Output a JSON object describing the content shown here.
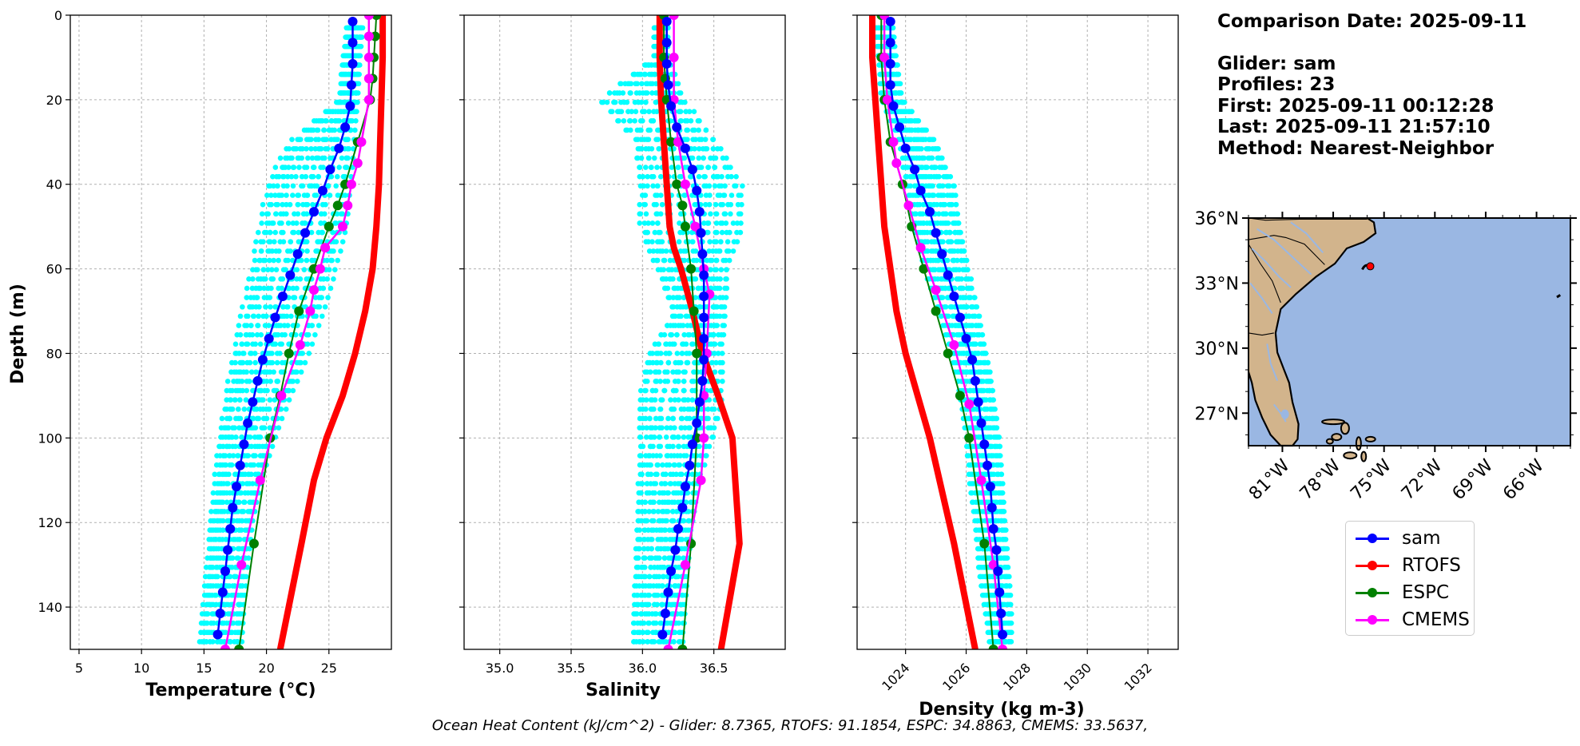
{
  "header": {
    "comparison": "Comparison Date: 2025-09-11",
    "glider": "Glider: sam",
    "profiles": "Profiles: 23",
    "first": "First: 2025-09-11 00:12:28",
    "last": "Last: 2025-09-11 21:57:10",
    "method": "Method: Nearest-Neighbor"
  },
  "footer": {
    "ohc": "Ocean Heat Content (kJ/cm^2) - Glider: 8.7365,  RTOFS: 91.1854,  ESPC: 34.8863,  CMEMS: 33.5637,"
  },
  "colors": {
    "sam": "#0000ff",
    "rtofs": "#ff0000",
    "espc": "#008000",
    "cmems": "#ff00ff",
    "profiles": "#00ffff",
    "land": "#d2b48c",
    "ocean": "#9ab7e3"
  },
  "legend": [
    {
      "label": "sam",
      "color": "#0000ff"
    },
    {
      "label": "RTOFS",
      "color": "#ff0000"
    },
    {
      "label": "ESPC",
      "color": "#008000"
    },
    {
      "label": "CMEMS",
      "color": "#ff00ff"
    }
  ],
  "chart_data": [
    {
      "type": "line",
      "xlabel": "Temperature (°C)",
      "ylabel": "Depth (m)",
      "xlim": [
        4.3,
        30.0
      ],
      "ylim": [
        150,
        0
      ],
      "xticks": [
        5,
        10,
        15,
        20,
        25
      ],
      "yticks": [
        0,
        20,
        40,
        60,
        80,
        100,
        120,
        140
      ],
      "grid": true,
      "profile_envelope": {
        "depth": [
          3,
          10,
          20,
          30,
          40,
          50,
          60,
          70,
          80,
          90,
          100,
          110,
          120,
          130,
          140,
          150
        ],
        "min": [
          26.4,
          26.1,
          25.8,
          21.8,
          20.0,
          19.4,
          18.7,
          18.0,
          17.3,
          16.7,
          16.2,
          15.8,
          15.5,
          15.2,
          14.9,
          14.6
        ],
        "max": [
          27.7,
          27.5,
          27.3,
          27.0,
          26.8,
          26.4,
          25.6,
          24.6,
          23.4,
          22.0,
          20.7,
          19.6,
          18.9,
          18.5,
          18.2,
          18.0
        ]
      },
      "series": [
        {
          "name": "sam",
          "depth": [
            1.5,
            6.5,
            11.5,
            16.5,
            21.5,
            26.5,
            31.5,
            36.5,
            41.5,
            46.5,
            51.5,
            56.5,
            61.5,
            66.5,
            71.5,
            76.5,
            81.5,
            86.5,
            91.5,
            96.5,
            101.5,
            106.5,
            111.5,
            116.5,
            121.5,
            126.5,
            131.5,
            136.5,
            141.5,
            146.5
          ],
          "values": [
            26.9,
            26.9,
            26.9,
            26.8,
            26.7,
            26.3,
            25.8,
            25.1,
            24.5,
            23.8,
            23.1,
            22.5,
            21.9,
            21.3,
            20.7,
            20.2,
            19.7,
            19.3,
            18.9,
            18.5,
            18.2,
            17.9,
            17.6,
            17.3,
            17.1,
            16.9,
            16.7,
            16.5,
            16.3,
            16.1
          ]
        },
        {
          "name": "RTOFS",
          "depth": [
            0,
            10,
            20,
            30,
            40,
            50,
            60,
            70,
            80,
            90,
            100,
            110,
            125,
            150
          ],
          "values": [
            29.3,
            29.3,
            29.2,
            29.1,
            29.0,
            28.8,
            28.5,
            27.9,
            27.1,
            26.1,
            24.8,
            23.8,
            22.8,
            21.1
          ]
        },
        {
          "name": "ESPC",
          "depth": [
            0,
            5,
            10,
            15,
            20,
            30,
            40,
            45,
            50,
            60,
            70,
            80,
            90,
            100,
            125,
            150
          ],
          "values": [
            28.8,
            28.7,
            28.6,
            28.5,
            28.3,
            27.3,
            26.3,
            25.7,
            25.0,
            23.8,
            22.6,
            21.8,
            21.1,
            20.3,
            19.0,
            17.8
          ]
        },
        {
          "name": "CMEMS",
          "depth": [
            0,
            5,
            10,
            15,
            20,
            30,
            35,
            40,
            45,
            50,
            55,
            60,
            65,
            70,
            78,
            90,
            110,
            130,
            150
          ],
          "values": [
            28.2,
            28.2,
            28.2,
            28.2,
            28.2,
            27.6,
            27.3,
            26.8,
            26.5,
            26.1,
            24.7,
            24.3,
            23.8,
            23.5,
            22.7,
            21.2,
            19.5,
            18.0,
            16.7
          ]
        }
      ]
    },
    {
      "type": "line",
      "xlabel": "Salinity",
      "xlim": [
        34.75,
        37.0
      ],
      "ylim": [
        150,
        0
      ],
      "xticks": [
        35.0,
        35.5,
        36.0,
        36.5
      ],
      "grid": true,
      "profile_envelope": {
        "depth": [
          3,
          10,
          20,
          30,
          40,
          50,
          60,
          70,
          80,
          90,
          100,
          110,
          120,
          130,
          140,
          150
        ],
        "min": [
          36.08,
          36.08,
          35.7,
          35.95,
          35.98,
          35.98,
          36.1,
          36.22,
          36.05,
          35.98,
          35.98,
          35.97,
          35.96,
          35.95,
          35.94,
          35.93
        ],
        "max": [
          36.18,
          36.18,
          36.3,
          36.52,
          36.7,
          36.7,
          36.6,
          36.58,
          36.56,
          36.56,
          36.5,
          36.4,
          36.35,
          36.32,
          36.3,
          36.28
        ]
      },
      "series": [
        {
          "name": "sam",
          "depth": [
            1.5,
            6.5,
            11.5,
            16.5,
            21.5,
            26.5,
            31.5,
            36.5,
            41.5,
            46.5,
            51.5,
            56.5,
            61.5,
            66.5,
            71.5,
            76.5,
            81.5,
            86.5,
            91.5,
            96.5,
            101.5,
            106.5,
            111.5,
            116.5,
            121.5,
            126.5,
            131.5,
            136.5,
            141.5,
            146.5
          ],
          "values": [
            36.17,
            36.17,
            36.17,
            36.18,
            36.2,
            36.24,
            36.3,
            36.35,
            36.38,
            36.4,
            36.41,
            36.42,
            36.43,
            36.43,
            36.43,
            36.43,
            36.43,
            36.42,
            36.4,
            36.38,
            36.35,
            36.33,
            36.3,
            36.28,
            36.25,
            36.23,
            36.2,
            36.18,
            36.16,
            36.14
          ]
        },
        {
          "name": "RTOFS",
          "depth": [
            0,
            10,
            20,
            30,
            40,
            50,
            55,
            60,
            70,
            80,
            90,
            100,
            125,
            150
          ],
          "values": [
            36.12,
            36.12,
            36.13,
            36.15,
            36.17,
            36.19,
            36.22,
            36.27,
            36.35,
            36.42,
            36.53,
            36.63,
            36.68,
            36.55
          ]
        },
        {
          "name": "ESPC",
          "depth": [
            0,
            10,
            15,
            20,
            30,
            40,
            45,
            50,
            60,
            70,
            80,
            100,
            125,
            150
          ],
          "values": [
            36.15,
            36.15,
            36.16,
            36.17,
            36.2,
            36.24,
            36.28,
            36.3,
            36.34,
            36.36,
            36.38,
            36.38,
            36.34,
            36.28
          ]
        },
        {
          "name": "CMEMS",
          "depth": [
            0,
            10,
            20,
            30,
            40,
            50,
            60,
            66,
            80,
            90,
            100,
            110,
            130,
            150
          ],
          "values": [
            36.22,
            36.22,
            36.22,
            36.25,
            36.3,
            36.37,
            36.43,
            36.47,
            36.45,
            36.43,
            36.43,
            36.41,
            36.3,
            36.18
          ]
        }
      ]
    },
    {
      "type": "line",
      "xlabel": "Density (kg m-3)",
      "xlim": [
        1022.4,
        1033.0
      ],
      "ylim": [
        150,
        0
      ],
      "xticks": [
        1024,
        1026,
        1028,
        1030,
        1032
      ],
      "grid": true,
      "profile_envelope": {
        "depth": [
          3,
          10,
          20,
          30,
          40,
          50,
          60,
          70,
          80,
          90,
          100,
          110,
          120,
          130,
          140,
          150
        ],
        "min": [
          1023.0,
          1023.1,
          1023.2,
          1023.8,
          1024.0,
          1024.3,
          1024.6,
          1025.1,
          1025.5,
          1025.8,
          1026.0,
          1026.1,
          1026.3,
          1026.4,
          1026.6,
          1026.8
        ],
        "max": [
          1023.6,
          1023.7,
          1023.9,
          1025.0,
          1025.6,
          1025.8,
          1026.1,
          1026.4,
          1026.7,
          1026.9,
          1027.1,
          1027.2,
          1027.3,
          1027.4,
          1027.5,
          1027.5
        ]
      },
      "series": [
        {
          "name": "sam",
          "depth": [
            1.5,
            6.5,
            11.5,
            16.5,
            21.5,
            26.5,
            31.5,
            36.5,
            41.5,
            46.5,
            51.5,
            56.5,
            61.5,
            66.5,
            71.5,
            76.5,
            81.5,
            86.5,
            91.5,
            96.5,
            101.5,
            106.5,
            111.5,
            116.5,
            121.5,
            126.5,
            131.5,
            136.5,
            141.5,
            146.5
          ],
          "values": [
            1023.5,
            1023.5,
            1023.5,
            1023.5,
            1023.6,
            1023.8,
            1024.0,
            1024.3,
            1024.5,
            1024.8,
            1025.0,
            1025.2,
            1025.4,
            1025.6,
            1025.8,
            1026.0,
            1026.2,
            1026.3,
            1026.4,
            1026.5,
            1026.6,
            1026.7,
            1026.8,
            1026.85,
            1026.9,
            1027.0,
            1027.05,
            1027.1,
            1027.15,
            1027.2
          ]
        },
        {
          "name": "RTOFS",
          "depth": [
            0,
            10,
            20,
            30,
            40,
            50,
            60,
            70,
            80,
            90,
            100,
            125,
            150
          ],
          "values": [
            1022.9,
            1022.9,
            1023.0,
            1023.1,
            1023.2,
            1023.3,
            1023.5,
            1023.7,
            1024.0,
            1024.4,
            1024.8,
            1025.6,
            1026.3
          ]
        },
        {
          "name": "ESPC",
          "depth": [
            0,
            10,
            20,
            30,
            40,
            50,
            60,
            70,
            80,
            90,
            100,
            125,
            150
          ],
          "values": [
            1023.2,
            1023.2,
            1023.3,
            1023.5,
            1023.9,
            1024.2,
            1024.6,
            1025.0,
            1025.4,
            1025.8,
            1026.1,
            1026.6,
            1026.9
          ]
        },
        {
          "name": "CMEMS",
          "depth": [
            0,
            10,
            20,
            30,
            35,
            45,
            55,
            65,
            78,
            92,
            110,
            130,
            150
          ],
          "values": [
            1023.3,
            1023.3,
            1023.4,
            1023.6,
            1023.7,
            1024.1,
            1024.5,
            1025.0,
            1025.6,
            1026.1,
            1026.5,
            1026.9,
            1027.2
          ]
        }
      ]
    }
  ],
  "map": {
    "lon_range": [
      -83.0,
      -64.0
    ],
    "lat_range": [
      25.5,
      36.0
    ],
    "lat_ticks": [
      "36°N",
      "33°N",
      "30°N",
      "27°N"
    ],
    "lat_values": [
      36,
      33,
      30,
      27
    ],
    "lon_ticks": [
      "81°W",
      "78°W",
      "75°W",
      "72°W",
      "69°W",
      "66°W"
    ],
    "lon_values": [
      -81,
      -78,
      -75,
      -72,
      -69,
      -66
    ],
    "glider_position": {
      "lon": -76.0,
      "lat": 33.7
    }
  }
}
